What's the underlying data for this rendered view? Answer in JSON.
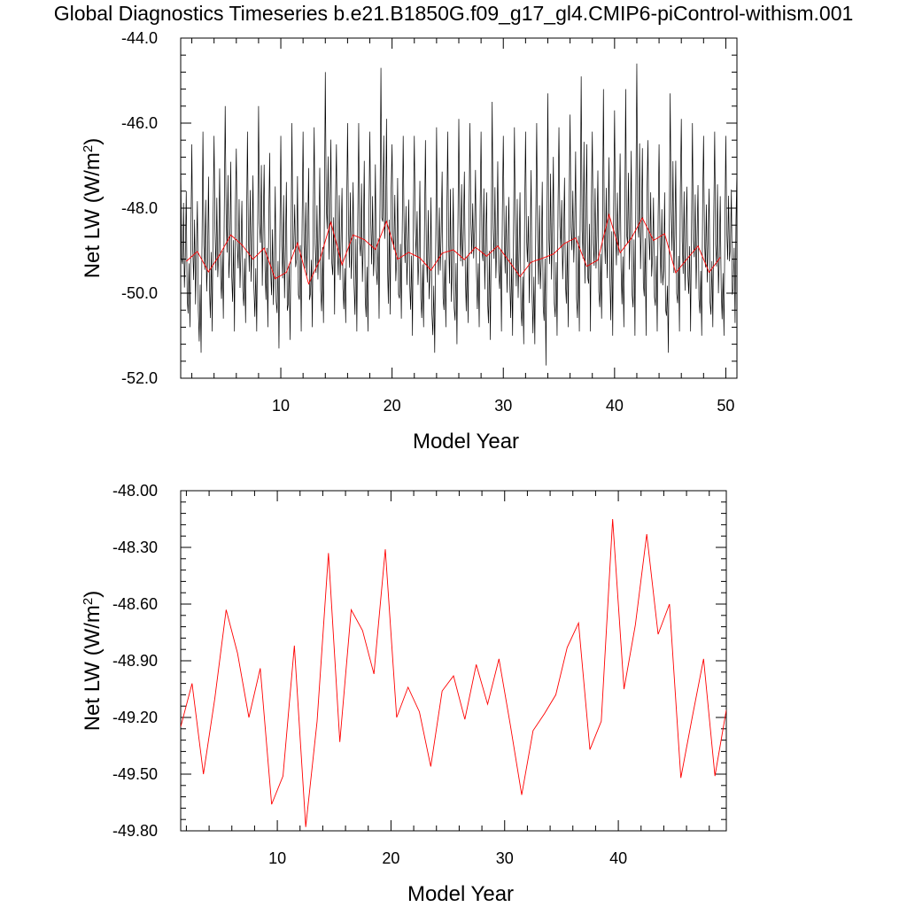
{
  "page_title": "Global Diagnostics Timeseries b.e21.B1850G.f09_g17_gl4.CMIP6-piControl-withism.001",
  "colors": {
    "monthly": "#000000",
    "annual": "#ff0000",
    "axis": "#000000",
    "background": "#ffffff"
  },
  "chart_data": [
    {
      "type": "line",
      "xlabel": "Model Year",
      "ylabel": "Net LW (W/m",
      "ylabel_superscript": "2",
      "ylabel_close": ")",
      "xlim": [
        1,
        51
      ],
      "ylim": [
        -52.0,
        -44.0
      ],
      "xticks": [
        10,
        20,
        30,
        40,
        50
      ],
      "yticks": [
        -52.0,
        -50.0,
        -48.0,
        -46.0,
        -44.0
      ],
      "ytick_labels": [
        "-52.0",
        "-50.0",
        "-48.0",
        "-46.0",
        "-44.0"
      ],
      "series": [
        {
          "key": "monthly",
          "style": "monthly seasonal cycle, 12 values per model year",
          "monthly_annual_max_by_year": [
            -46.7,
            -46.5,
            -46.2,
            -46.3,
            -45.6,
            -46.6,
            -46.2,
            -45.6,
            -46.7,
            -46.3,
            -46.0,
            -46.2,
            -46.1,
            -44.8,
            -46.5,
            -46.0,
            -46.0,
            -46.2,
            -44.7,
            -46.5,
            -46.3,
            -46.3,
            -46.4,
            -46.1,
            -46.2,
            -45.9,
            -46.0,
            -46.2,
            -45.5,
            -46.3,
            -46.1,
            -46.2,
            -46.0,
            -45.3,
            -46.1,
            -45.8,
            -44.9,
            -46.2,
            -45.2,
            -45.7,
            -45.2,
            -44.6,
            -46.4,
            -46.5,
            -45.3,
            -45.9,
            -46.0,
            -46.3,
            -46.2,
            -46.3
          ],
          "monthly_annual_min_by_year": [
            -50.8,
            -51.4,
            -50.9,
            -50.6,
            -50.9,
            -50.7,
            -50.9,
            -50.8,
            -51.3,
            -51.1,
            -50.9,
            -50.8,
            -50.7,
            -50.5,
            -50.7,
            -50.9,
            -50.9,
            -50.6,
            -50.5,
            -50.6,
            -51.0,
            -50.8,
            -51.4,
            -50.8,
            -51.2,
            -50.7,
            -50.8,
            -51.1,
            -50.9,
            -51.0,
            -51.2,
            -51.2,
            -51.7,
            -51.0,
            -50.8,
            -50.9,
            -50.9,
            -50.6,
            -51.0,
            -50.8,
            -51.0,
            -51.0,
            -50.9,
            -51.4,
            -50.9,
            -50.9,
            -51.0,
            -50.8,
            -51.0,
            -50.7
          ]
        },
        {
          "key": "annual",
          "x": [
            1.5,
            2.5,
            3.5,
            4.5,
            5.5,
            6.5,
            7.5,
            8.5,
            9.5,
            10.5,
            11.5,
            12.5,
            13.5,
            14.5,
            15.5,
            16.5,
            17.5,
            18.5,
            19.5,
            20.5,
            21.5,
            22.5,
            23.5,
            24.5,
            25.5,
            26.5,
            27.5,
            28.5,
            29.5,
            30.5,
            31.5,
            32.5,
            33.5,
            34.5,
            35.5,
            36.5,
            37.5,
            38.5,
            39.5,
            40.5,
            41.5,
            42.5,
            43.5,
            44.5,
            45.5,
            46.5,
            47.5,
            48.5,
            49.5
          ],
          "values": [
            -49.25,
            -49.02,
            -49.5,
            -49.1,
            -48.63,
            -48.86,
            -49.2,
            -48.94,
            -49.66,
            -49.51,
            -48.82,
            -49.78,
            -49.22,
            -48.33,
            -49.33,
            -48.63,
            -48.74,
            -48.97,
            -48.31,
            -49.2,
            -49.04,
            -49.17,
            -49.46,
            -49.06,
            -48.98,
            -49.21,
            -48.92,
            -49.13,
            -48.89,
            -49.24,
            -49.61,
            -49.27,
            -49.18,
            -49.08,
            -48.83,
            -48.7,
            -49.37,
            -49.22,
            -48.15,
            -49.05,
            -48.71,
            -48.23,
            -48.76,
            -48.6,
            -49.52,
            -49.2,
            -48.89,
            -49.51,
            -49.16
          ]
        }
      ]
    },
    {
      "type": "line",
      "xlabel": "Model Year",
      "ylabel": "Net LW (W/m",
      "ylabel_superscript": "2",
      "ylabel_close": ")",
      "xlim": [
        1.5,
        49.5
      ],
      "ylim": [
        -49.8,
        -48.0
      ],
      "xticks": [
        10,
        20,
        30,
        40
      ],
      "yticks": [
        -49.8,
        -49.5,
        -49.2,
        -48.9,
        -48.6,
        -48.3,
        -48.0
      ],
      "ytick_labels": [
        "-49.80",
        "-49.50",
        "-49.20",
        "-48.90",
        "-48.60",
        "-48.30",
        "-48.00"
      ],
      "series": [
        {
          "key": "annual",
          "ref": 0
        }
      ]
    }
  ]
}
